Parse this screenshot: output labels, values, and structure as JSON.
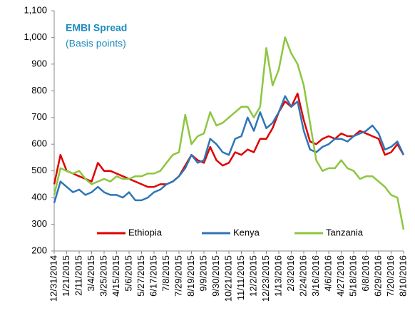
{
  "chart_data": {
    "type": "line",
    "title": "EMBI Spread",
    "subtitle": "(Basis points)",
    "categories": [
      "12/31/2014",
      null,
      "1/21/2015",
      null,
      "2/11/2015",
      null,
      "3/4/2015",
      null,
      "3/25/2015",
      null,
      "4/15/2015",
      null,
      "5/6/2015",
      null,
      "5/27/2015",
      null,
      "6/17/2015",
      null,
      "7/8/2015",
      null,
      "7/29/2015",
      null,
      "8/19/2015",
      null,
      "9/9/2015",
      null,
      "9/30/2015",
      null,
      "10/21/2015",
      null,
      "11/11/2015",
      null,
      "12/2/2015",
      null,
      "12/23/2015",
      null,
      "1/13/2016",
      null,
      "2/3/2016",
      null,
      "2/24/2016",
      null,
      "3/16/2016",
      null,
      "4/6/2016",
      null,
      "4/27/2016",
      null,
      "5/18/2016",
      null,
      "6/8/2016",
      null,
      "6/29/2016",
      null,
      "7/20/2016",
      null,
      "8/10/2016"
    ],
    "series": [
      {
        "name": "Ethiopia",
        "color": "#e00000",
        "values": [
          450,
          560,
          500,
          490,
          480,
          470,
          460,
          530,
          500,
          500,
          490,
          480,
          470,
          460,
          450,
          440,
          440,
          450,
          450,
          460,
          480,
          520,
          560,
          540,
          530,
          590,
          540,
          520,
          530,
          570,
          560,
          580,
          570,
          620,
          620,
          660,
          720,
          760,
          740,
          790,
          690,
          610,
          600,
          620,
          630,
          620,
          640,
          630,
          630,
          650,
          640,
          630,
          620,
          560,
          570,
          600,
          560
        ]
      },
      {
        "name": "Kenya",
        "color": "#2e75b6",
        "values": [
          380,
          460,
          440,
          420,
          430,
          410,
          420,
          440,
          420,
          410,
          410,
          400,
          420,
          390,
          390,
          400,
          420,
          430,
          450,
          460,
          480,
          510,
          560,
          530,
          540,
          620,
          600,
          570,
          560,
          620,
          630,
          700,
          650,
          720,
          660,
          680,
          720,
          780,
          740,
          760,
          650,
          580,
          570,
          590,
          600,
          620,
          620,
          610,
          630,
          640,
          650,
          670,
          640,
          580,
          590,
          610,
          560
        ]
      },
      {
        "name": "Tanzania",
        "color": "#8dc63f",
        "values": [
          410,
          510,
          500,
          490,
          500,
          470,
          450,
          460,
          470,
          460,
          480,
          470,
          470,
          480,
          480,
          490,
          490,
          500,
          530,
          560,
          570,
          710,
          600,
          630,
          640,
          720,
          670,
          680,
          700,
          720,
          740,
          740,
          700,
          740,
          960,
          820,
          880,
          1000,
          940,
          900,
          820,
          680,
          540,
          500,
          510,
          510,
          540,
          510,
          500,
          470,
          480,
          480,
          460,
          440,
          410,
          400,
          280
        ]
      }
    ],
    "ylim": [
      200,
      1100
    ],
    "yticks": [
      200,
      300,
      400,
      500,
      600,
      700,
      800,
      900,
      {
        "value": 1000,
        "label": "1,000"
      },
      {
        "value": 1100,
        "label": "1,100"
      }
    ],
    "grid": false,
    "legend": "bottom"
  }
}
